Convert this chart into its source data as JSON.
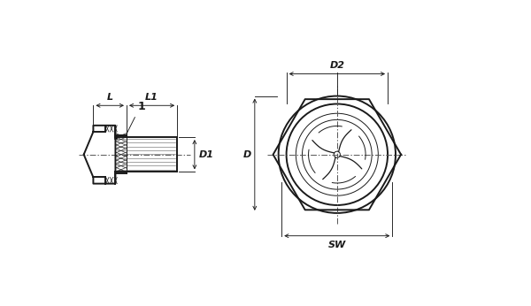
{
  "bg_color": "#ffffff",
  "line_color": "#1a1a1a",
  "lw_thick": 1.4,
  "lw_thin": 0.7,
  "lw_dim": 0.65,
  "labels": {
    "L": "L",
    "L1": "L1",
    "D1": "D1",
    "D": "D",
    "D2": "D2",
    "SW": "SW",
    "part1": "1"
  }
}
